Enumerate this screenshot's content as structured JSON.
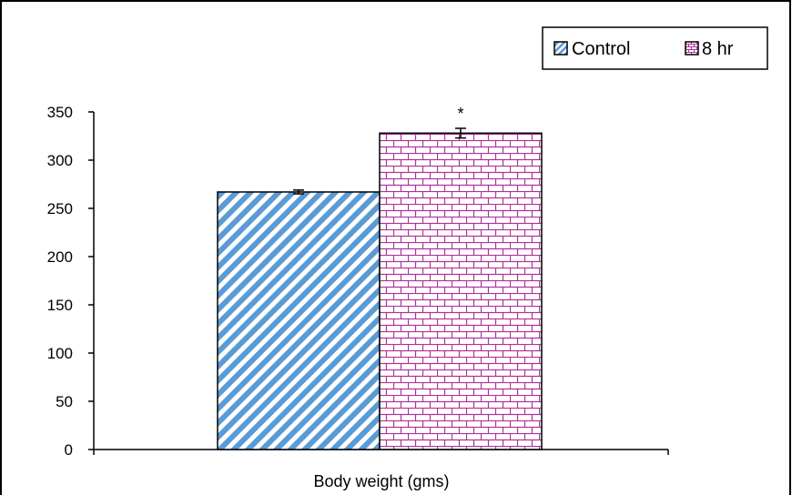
{
  "colors": {
    "background": "#ffffff",
    "axis": "#000000",
    "control_stripe": "#5b9bd5",
    "eight_hr_brick": "#b0309a"
  },
  "legend": {
    "items": [
      {
        "label": "Control",
        "pattern": "diagonal-stripes"
      },
      {
        "label": "8 hr",
        "pattern": "brick"
      }
    ]
  },
  "chart_data": {
    "type": "bar",
    "categories": [
      "Body weight (gms)"
    ],
    "xlabel": "Body weight (gms)",
    "ylabel": "",
    "ylim": [
      0,
      350
    ],
    "yticks": [
      0,
      50,
      100,
      150,
      200,
      250,
      300,
      350
    ],
    "grid": false,
    "legend_position": "top-right",
    "series": [
      {
        "name": "Control",
        "values": [
          267
        ],
        "error": [
          2
        ],
        "annotation": ""
      },
      {
        "name": "8 hr",
        "values": [
          328
        ],
        "error": [
          5
        ],
        "annotation": "*"
      }
    ]
  }
}
